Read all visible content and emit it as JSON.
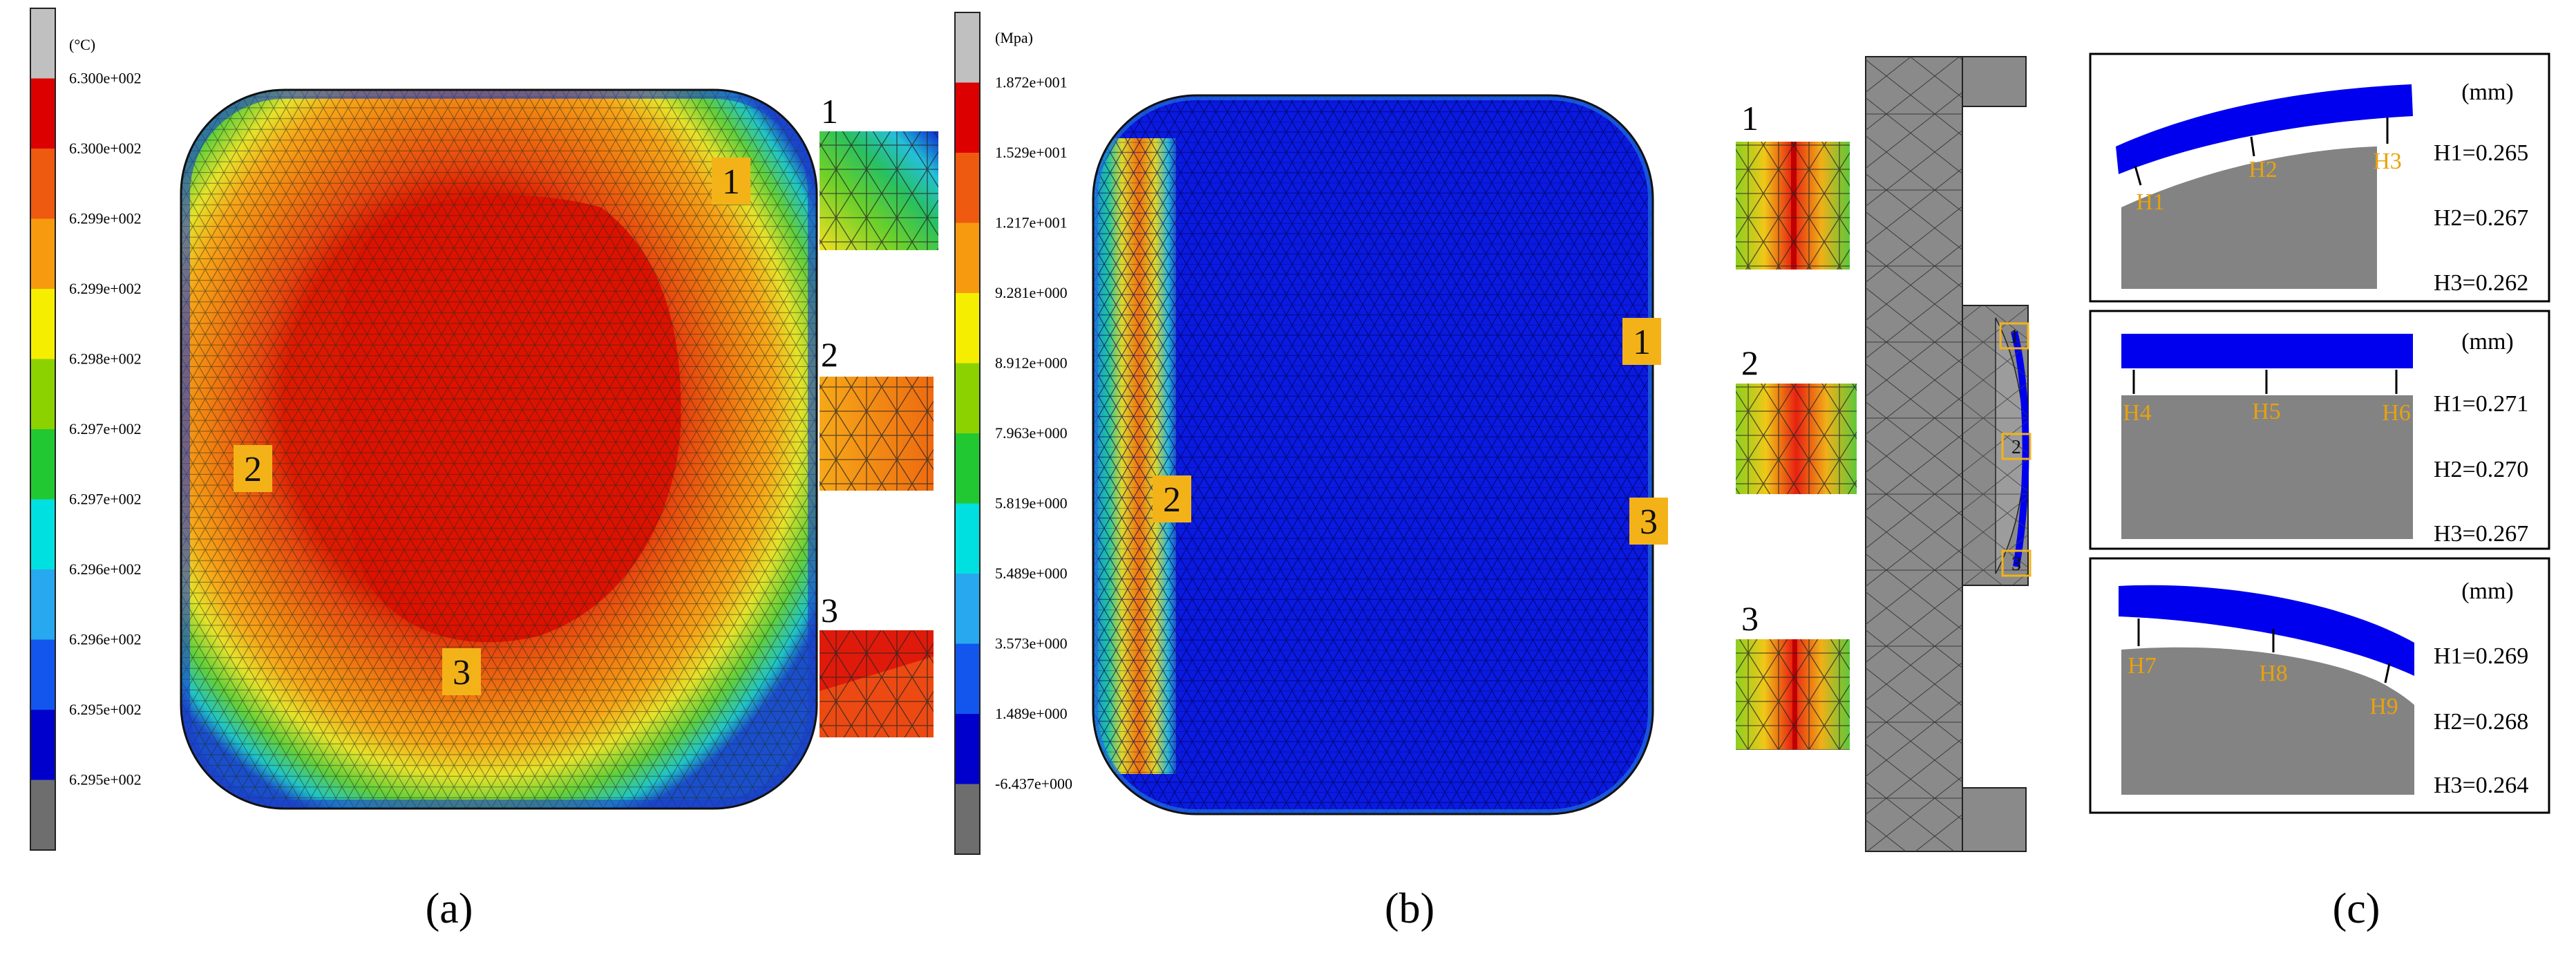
{
  "panel_a": {
    "legend": {
      "unit": "(°C)",
      "labels": [
        "6.300e+002",
        "6.300e+002",
        "6.299e+002",
        "6.299e+002",
        "6.298e+002",
        "6.297e+002",
        "6.297e+002",
        "6.296e+002",
        "6.296e+002",
        "6.295e+002",
        "6.295e+002"
      ],
      "colors": [
        "#c0c0c0",
        "#dd0000",
        "#ee5a10",
        "#f79a10",
        "#f5ee00",
        "#8cd200",
        "#22c832",
        "#00e0e0",
        "#28a8ee",
        "#1256ee",
        "#0000cc",
        "#6e6e6e"
      ]
    },
    "markers": [
      "1",
      "2",
      "3"
    ],
    "insets": [
      {
        "label": "1"
      },
      {
        "label": "2"
      },
      {
        "label": "3"
      }
    ],
    "caption": "(a)"
  },
  "panel_b": {
    "legend": {
      "unit": "(Mpa)",
      "labels": [
        "1.872e+001",
        "1.529e+001",
        "1.217e+001",
        "9.281e+000",
        "8.912e+000",
        "7.963e+000",
        "5.819e+000",
        "5.489e+000",
        "3.573e+000",
        "1.489e+000",
        "-6.437e+000"
      ],
      "colors": [
        "#c0c0c0",
        "#dd0000",
        "#ee5a10",
        "#f79a10",
        "#f5ee00",
        "#8cd200",
        "#22c832",
        "#00e0e0",
        "#28a8ee",
        "#1256ee",
        "#0000cc",
        "#6e6e6e"
      ]
    },
    "markers": [
      "1",
      "2",
      "3"
    ],
    "insets": [
      {
        "label": "1"
      },
      {
        "label": "2"
      },
      {
        "label": "3"
      }
    ],
    "section_markers": [
      "1",
      "2",
      "3"
    ],
    "caption": "(b)"
  },
  "panel_c": {
    "boxes": [
      {
        "unit": "(mm)",
        "points": [
          "H1",
          "H2",
          "H3"
        ],
        "values": [
          "H1=0.265",
          "H2=0.267",
          "H3=0.262"
        ]
      },
      {
        "unit": "(mm)",
        "points": [
          "H4",
          "H5",
          "H6"
        ],
        "values": [
          "H1=0.271",
          "H2=0.270",
          "H3=0.267"
        ]
      },
      {
        "unit": "(mm)",
        "points": [
          "H7",
          "H8",
          "H9"
        ],
        "values": [
          "H1=0.269",
          "H2=0.268",
          "H3=0.264"
        ]
      }
    ],
    "caption": "(c)"
  },
  "colors": {
    "marker_fill": "#f3b318",
    "label_orange": "#e8a20c",
    "glass_blue": "#0000ee",
    "mold_gray": "#838383",
    "mesh_dark": "#2a2a2a"
  }
}
